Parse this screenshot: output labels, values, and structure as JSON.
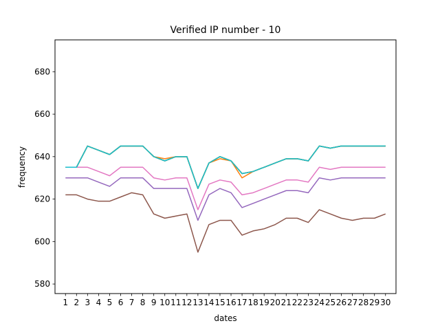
{
  "chart_data": {
    "type": "line",
    "title": "Verified IP number - 10",
    "xlabel": "dates",
    "ylabel": "frequency",
    "x": [
      1,
      2,
      3,
      4,
      5,
      6,
      7,
      8,
      9,
      10,
      11,
      12,
      13,
      14,
      15,
      16,
      17,
      18,
      19,
      20,
      21,
      22,
      23,
      24,
      25,
      26,
      27,
      28,
      29,
      30
    ],
    "xlim": [
      0.05,
      30.95
    ],
    "ylim": [
      575.5,
      695
    ],
    "yticks": [
      580,
      600,
      620,
      640,
      660,
      680
    ],
    "grid": false,
    "series": [
      {
        "color": "#1f77b4",
        "values": [
          635,
          635,
          645,
          643,
          641,
          645,
          645,
          645,
          640,
          638,
          640,
          640,
          625,
          637,
          640,
          638,
          632,
          633,
          635,
          637,
          639,
          639,
          638,
          645,
          644,
          645,
          645,
          645,
          645,
          645
        ]
      },
      {
        "color": "#ff7f0e",
        "values": [
          635,
          635,
          645,
          643,
          641,
          645,
          645,
          645,
          640,
          639,
          640,
          640,
          625,
          637,
          639,
          638,
          630,
          633,
          635,
          637,
          639,
          639,
          638,
          645,
          644,
          645,
          645,
          645,
          645,
          645
        ]
      },
      {
        "color": "#2ca02c",
        "values": [
          635,
          635,
          645,
          643,
          641,
          645,
          645,
          645,
          640,
          638,
          640,
          640,
          625,
          637,
          640,
          638,
          632,
          633,
          635,
          637,
          639,
          639,
          638,
          645,
          644,
          645,
          645,
          645,
          645,
          645
        ]
      },
      {
        "color": "#d62728",
        "values": [
          635,
          635,
          645,
          643,
          641,
          645,
          645,
          645,
          640,
          638,
          640,
          640,
          625,
          637,
          640,
          638,
          632,
          633,
          635,
          637,
          639,
          639,
          638,
          645,
          644,
          645,
          645,
          645,
          645,
          645
        ]
      },
      {
        "color": "#9467bd",
        "values": [
          630,
          630,
          630,
          628,
          626,
          630,
          630,
          630,
          625,
          625,
          625,
          625,
          610,
          622,
          625,
          623,
          616,
          618,
          620,
          622,
          624,
          624,
          623,
          630,
          629,
          630,
          630,
          630,
          630,
          630
        ]
      },
      {
        "color": "#8c564b",
        "values": [
          622,
          622,
          620,
          619,
          619,
          621,
          623,
          622,
          613,
          611,
          612,
          613,
          595,
          608,
          610,
          610,
          603,
          605,
          606,
          608,
          611,
          611,
          609,
          615,
          613,
          611,
          610,
          611,
          611,
          613
        ]
      },
      {
        "color": "#e377c2",
        "values": [
          635,
          635,
          635,
          633,
          631,
          635,
          635,
          635,
          630,
          629,
          630,
          630,
          615,
          627,
          629,
          628,
          622,
          623,
          625,
          627,
          629,
          629,
          628,
          635,
          634,
          635,
          635,
          635,
          635,
          635
        ]
      },
      {
        "color": "#7f7f7f",
        "values": [
          635,
          635,
          645,
          643,
          641,
          645,
          645,
          645,
          640,
          638,
          640,
          640,
          625,
          637,
          640,
          638,
          632,
          633,
          635,
          637,
          639,
          639,
          638,
          645,
          644,
          645,
          645,
          645,
          645,
          645
        ]
      },
      {
        "color": "#bcbd22",
        "values": [
          635,
          635,
          645,
          643,
          641,
          645,
          645,
          645,
          640,
          638,
          640,
          640,
          625,
          637,
          640,
          638,
          632,
          633,
          635,
          637,
          639,
          639,
          638,
          645,
          644,
          645,
          645,
          645,
          645,
          645
        ]
      },
      {
        "color": "#17becf",
        "values": [
          635,
          635,
          645,
          643,
          641,
          645,
          645,
          645,
          640,
          638,
          640,
          640,
          625,
          637,
          640,
          638,
          632,
          633,
          635,
          637,
          639,
          639,
          638,
          645,
          644,
          645,
          645,
          645,
          645,
          645
        ]
      }
    ]
  }
}
